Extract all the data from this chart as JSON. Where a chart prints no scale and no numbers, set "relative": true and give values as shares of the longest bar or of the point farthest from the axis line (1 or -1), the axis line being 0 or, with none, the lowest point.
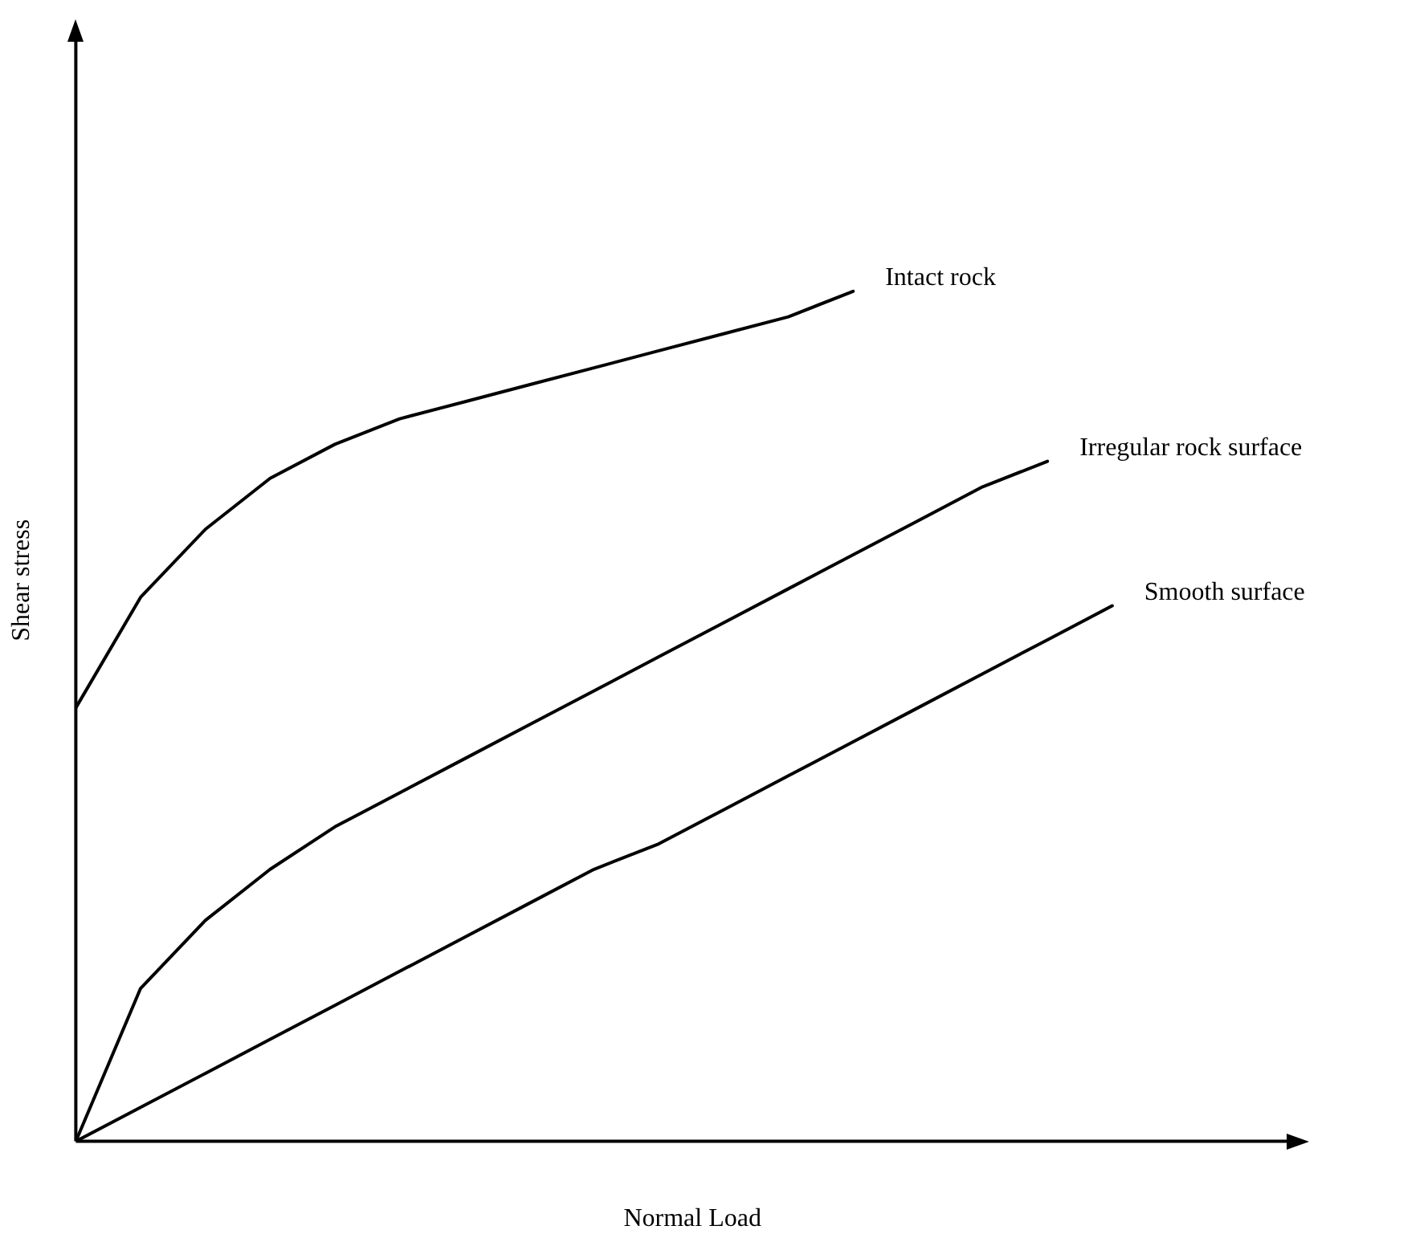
{
  "chart_data": {
    "type": "line",
    "relative": true,
    "xlabel": "Normal Load",
    "ylabel": "Shear stress",
    "grid": false,
    "legend": false,
    "marker": "none",
    "line_style": "solid",
    "tick_labels": false,
    "categories": [
      null,
      null,
      null,
      null,
      null,
      null,
      null,
      null,
      null,
      null,
      null,
      null,
      null,
      null,
      null,
      null,
      null
    ],
    "series": [
      {
        "name": "Intact rock",
        "color": "#000000",
        "values": [
          0.51,
          0.64,
          0.72,
          0.78,
          0.82,
          0.85,
          0.87,
          0.89,
          0.91,
          0.93,
          0.95,
          0.97,
          1.0,
          null,
          null,
          null,
          null
        ]
      },
      {
        "name": "Irregular rock surface",
        "color": "#000000",
        "values": [
          0,
          0.18,
          0.26,
          0.32,
          0.37,
          0.41,
          0.45,
          0.49,
          0.53,
          0.57,
          0.61,
          0.65,
          0.69,
          0.73,
          0.77,
          0.8,
          null
        ]
      },
      {
        "name": "Smooth surface",
        "color": "#000000",
        "values": [
          0,
          0.04,
          0.08,
          0.12,
          0.16,
          0.2,
          0.24,
          0.28,
          0.32,
          0.35,
          0.39,
          0.43,
          0.47,
          0.51,
          0.55,
          0.59,
          0.63
        ]
      }
    ]
  }
}
